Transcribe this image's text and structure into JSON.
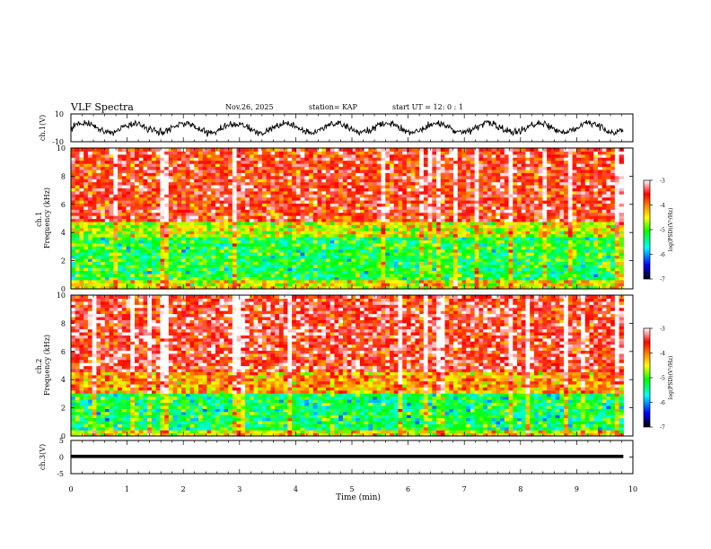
{
  "header": {
    "title": "VLF Spectra",
    "date": "Nov.26, 2025",
    "station": "station= KAP",
    "start": "start  UT  =   12: 0  : 1"
  },
  "chart_data": [
    {
      "type": "line",
      "name": "ch.1 waveform",
      "ylabel": "ch.1(V)",
      "ylim": [
        -10,
        10
      ],
      "yticks": [
        "10",
        "-10"
      ],
      "xlim": [
        0,
        10
      ],
      "x_extent_min": 9.83,
      "mean": 0,
      "oscillation_period_min": 0.9,
      "amplitude_range": [
        -7,
        7
      ]
    },
    {
      "type": "heatmap",
      "name": "ch.1 spectrogram",
      "ylabel": "ch.1\nFrequency (kHz)",
      "ylabel_lines": [
        "ch.1",
        "Frequency (kHz)"
      ],
      "ylim": [
        0,
        10
      ],
      "yticks": [
        "0",
        "2",
        "4",
        "6",
        "8",
        "10"
      ],
      "xlim": [
        0,
        10
      ],
      "dominant_log_psd": -3.8,
      "band_log_psd": [
        {
          "from_khz": 0,
          "to_khz": 0.6,
          "value": -4.5
        },
        {
          "from_khz": 0.6,
          "to_khz": 3.6,
          "value": -5.2
        },
        {
          "from_khz": 3.6,
          "to_khz": 4.8,
          "value": -4.6
        },
        {
          "from_khz": 4.8,
          "to_khz": 10,
          "value": -3.6
        }
      ],
      "colorbar": {
        "label": "log(PSD)(V²/Hz)",
        "range": [
          -7,
          -3
        ],
        "ticks": [
          "-3",
          "-4",
          "-5",
          "-6",
          "-7"
        ]
      }
    },
    {
      "type": "heatmap",
      "name": "ch.2 spectrogram",
      "ylabel": "ch.2\nFrequency (kHz)",
      "ylabel_lines": [
        "ch.2",
        "Frequency (kHz)"
      ],
      "ylim": [
        0,
        10
      ],
      "yticks": [
        "0",
        "2",
        "4",
        "6",
        "8",
        "10"
      ],
      "xlim": [
        0,
        10
      ],
      "dominant_log_psd": -3.7,
      "band_log_psd": [
        {
          "from_khz": 0,
          "to_khz": 0.5,
          "value": -4.5
        },
        {
          "from_khz": 0.5,
          "to_khz": 3.0,
          "value": -5.3
        },
        {
          "from_khz": 3.0,
          "to_khz": 4.5,
          "value": -4.1
        },
        {
          "from_khz": 4.5,
          "to_khz": 10,
          "value": -3.5
        }
      ],
      "colorbar": {
        "label": "log(PSD)(V²/Hz)",
        "range": [
          -7,
          -3
        ],
        "ticks": [
          "-3",
          "-4",
          "-5",
          "-6",
          "-7"
        ]
      }
    },
    {
      "type": "line",
      "name": "ch.3 waveform",
      "ylabel": "ch.3(V)",
      "ylim": [
        -5,
        5
      ],
      "yticks": [
        "5",
        "0",
        "-5"
      ],
      "xlim": [
        0,
        10
      ],
      "x_extent_min": 9.83,
      "level_v": 0.2,
      "band_halfwidth_v": 0.5
    }
  ],
  "xaxis": {
    "label": "Time (min)",
    "range": [
      0,
      10
    ],
    "ticks": [
      "0",
      "1",
      "2",
      "3",
      "4",
      "5",
      "6",
      "7",
      "8",
      "9",
      "10"
    ]
  },
  "colors": {
    "scale": [
      "#000000",
      "#0000ff",
      "#00ffff",
      "#00ff00",
      "#ffff00",
      "#ff8800",
      "#ff0000",
      "#ffffff"
    ]
  }
}
